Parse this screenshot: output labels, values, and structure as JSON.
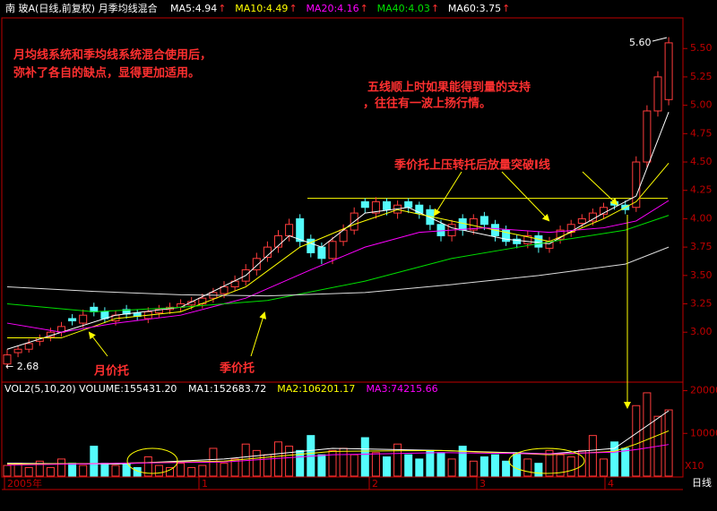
{
  "header": {
    "title": "南  玻A(日线,前复权) 月季均线混合",
    "arrow": "↑",
    "ma_labels": [
      {
        "name": "MA5:4.94",
        "color": "#ffffff"
      },
      {
        "name": "MA10:4.49",
        "color": "#ffff00"
      },
      {
        "name": "MA20:4.16",
        "color": "#ff00ff"
      },
      {
        "name": "MA40:4.03",
        "color": "#00e000"
      },
      {
        "name": "MA60:3.75",
        "color": "#ffffff"
      }
    ]
  },
  "annotations": {
    "note1": [
      "月均线系统和季均线系统混合使用后，",
      "弥补了各自的缺点，显得更加适用。"
    ],
    "note2": [
      "五线顺上时如果能得到量的支持",
      "，往往有一波上扬行情。"
    ],
    "note3": "季价托上压转托后放量突破I线",
    "month_support": "月价托",
    "quarter_support": "季价托",
    "high_label": "5.60",
    "low_label": "← 2.68"
  },
  "chart_data": [
    {
      "type": "candlestick",
      "up_color": "#ff3c3c",
      "down_color": "#54fcfc",
      "ylim": [
        2.56,
        5.77
      ],
      "yticks": [
        {
          "value": 3,
          "label": "3.00"
        },
        {
          "value": 3.25,
          "label": "3.25"
        },
        {
          "value": 3.5,
          "label": "3.50"
        },
        {
          "value": 3.75,
          "label": "3.75"
        },
        {
          "value": 4,
          "label": "4.00"
        },
        {
          "value": 4.25,
          "label": "4.25"
        },
        {
          "value": 4.5,
          "label": "4.50"
        },
        {
          "value": 4.75,
          "label": "4.75"
        },
        {
          "value": 5,
          "label": "5.00"
        },
        {
          "value": 5.25,
          "label": "5.25"
        },
        {
          "value": 5.5,
          "label": "5.50"
        }
      ],
      "open": [
        2.72,
        2.82,
        2.85,
        2.92,
        2.96,
        3.0,
        3.12,
        3.08,
        3.22,
        3.18,
        3.1,
        3.2,
        3.17,
        3.12,
        3.17,
        3.2,
        3.22,
        3.24,
        3.25,
        3.3,
        3.34,
        3.4,
        3.45,
        3.55,
        3.66,
        3.75,
        3.85,
        4.0,
        3.82,
        3.75,
        3.65,
        3.8,
        3.9,
        4.15,
        4.05,
        4.15,
        4.05,
        4.15,
        4.12,
        4.08,
        3.95,
        3.85,
        4.0,
        3.9,
        4.02,
        3.95,
        3.9,
        3.82,
        3.78,
        3.85,
        3.74,
        3.82,
        3.88,
        3.96,
        3.98,
        4.04,
        4.15,
        4.12,
        4.1,
        4.5,
        4.95,
        5.05
      ],
      "high": [
        2.85,
        2.88,
        2.94,
        2.98,
        3.04,
        3.09,
        3.16,
        3.2,
        3.26,
        3.22,
        3.19,
        3.24,
        3.2,
        3.22,
        3.24,
        3.26,
        3.29,
        3.31,
        3.34,
        3.39,
        3.45,
        3.5,
        3.6,
        3.7,
        3.8,
        3.9,
        4.0,
        4.04,
        3.86,
        3.79,
        3.84,
        3.95,
        4.1,
        4.18,
        4.19,
        4.18,
        4.16,
        4.18,
        4.15,
        4.12,
        3.99,
        3.99,
        4.04,
        4.04,
        4.06,
        3.99,
        3.94,
        3.86,
        3.89,
        3.89,
        3.84,
        3.94,
        3.99,
        4.04,
        4.09,
        4.14,
        4.18,
        4.16,
        4.55,
        5.0,
        5.3,
        5.6
      ],
      "low": [
        2.68,
        2.78,
        2.82,
        2.88,
        2.92,
        2.96,
        3.06,
        3.04,
        3.14,
        3.08,
        3.06,
        3.12,
        3.1,
        3.08,
        3.13,
        3.16,
        3.18,
        3.2,
        3.21,
        3.26,
        3.3,
        3.36,
        3.41,
        3.5,
        3.62,
        3.7,
        3.8,
        3.75,
        3.66,
        3.6,
        3.6,
        3.76,
        3.86,
        4.05,
        4.0,
        4.03,
        4.0,
        4.05,
        4.0,
        3.9,
        3.8,
        3.8,
        3.85,
        3.86,
        3.9,
        3.8,
        3.76,
        3.74,
        3.74,
        3.7,
        3.7,
        3.78,
        3.84,
        3.92,
        3.94,
        4.0,
        4.08,
        4.04,
        4.06,
        4.45,
        4.9,
        5.0
      ],
      "close": [
        2.8,
        2.85,
        2.9,
        2.95,
        3.0,
        3.05,
        3.1,
        3.15,
        3.18,
        3.12,
        3.15,
        3.16,
        3.14,
        3.18,
        3.2,
        3.22,
        3.25,
        3.27,
        3.3,
        3.35,
        3.4,
        3.45,
        3.55,
        3.65,
        3.75,
        3.85,
        3.95,
        3.8,
        3.7,
        3.65,
        3.8,
        3.9,
        4.05,
        4.1,
        4.15,
        4.08,
        4.12,
        4.1,
        4.05,
        3.95,
        3.85,
        3.95,
        3.9,
        4.0,
        3.95,
        3.85,
        3.8,
        3.78,
        3.85,
        3.75,
        3.8,
        3.9,
        3.95,
        4.0,
        4.05,
        4.1,
        4.12,
        4.08,
        4.5,
        4.95,
        5.25,
        5.55
      ],
      "resistance_level": 4.18,
      "resistance_color": "#ffff00",
      "series": [
        {
          "color": "#ffffff",
          "x": [
            0,
            5,
            10,
            16,
            22,
            26,
            29,
            33,
            37,
            41,
            46,
            50,
            55,
            58,
            61
          ],
          "values": [
            2.85,
            3.0,
            3.15,
            3.22,
            3.5,
            3.85,
            3.75,
            4.05,
            4.1,
            3.92,
            3.82,
            3.78,
            4.05,
            4.2,
            4.94
          ]
        },
        {
          "color": "#ffff00",
          "x": [
            0,
            5,
            10,
            16,
            22,
            27,
            32,
            36,
            40,
            45,
            50,
            55,
            58,
            61
          ],
          "values": [
            2.95,
            2.95,
            3.12,
            3.18,
            3.4,
            3.75,
            3.95,
            4.08,
            4.0,
            3.9,
            3.8,
            4.0,
            4.15,
            4.49
          ]
        },
        {
          "color": "#ff00ff",
          "x": [
            0,
            5,
            10,
            16,
            22,
            28,
            33,
            38,
            44,
            50,
            55,
            58,
            61
          ],
          "values": [
            3.08,
            3.0,
            3.08,
            3.15,
            3.3,
            3.55,
            3.75,
            3.88,
            3.92,
            3.88,
            3.92,
            3.98,
            4.16
          ]
        },
        {
          "color": "#00e000",
          "x": [
            0,
            8,
            16,
            24,
            33,
            41,
            49,
            57,
            61
          ],
          "values": [
            3.25,
            3.18,
            3.22,
            3.28,
            3.45,
            3.65,
            3.78,
            3.9,
            4.03
          ]
        },
        {
          "color": "#dddddd",
          "x": [
            0,
            8,
            16,
            24,
            33,
            41,
            49,
            57,
            61
          ],
          "values": [
            3.4,
            3.36,
            3.33,
            3.32,
            3.35,
            3.42,
            3.5,
            3.6,
            3.75
          ]
        }
      ]
    },
    {
      "type": "volume",
      "title": "VOL2(5,10,20) VOLUME:155431.20",
      "unit_label": "X10",
      "ylim": [
        0,
        22000
      ],
      "yticks": [
        10000,
        20000
      ],
      "values": [
        2500,
        3000,
        2000,
        3500,
        2000,
        4000,
        3000,
        2500,
        7000,
        3000,
        2500,
        3000,
        2000,
        4500,
        2500,
        2000,
        3000,
        2000,
        2500,
        6500,
        3000,
        4000,
        7500,
        6000,
        5000,
        8000,
        7000,
        6000,
        9500,
        5000,
        6000,
        6500,
        5000,
        9000,
        5500,
        4500,
        7500,
        5000,
        4000,
        6000,
        5500,
        4000,
        7000,
        3500,
        4500,
        5000,
        3500,
        5500,
        4000,
        3000,
        6000,
        5000,
        4500,
        6000,
        9500,
        4000,
        8000,
        6500,
        16500,
        19500,
        14000,
        15500
      ],
      "series": [
        {
          "name": "MA1:152683.72",
          "color": "#ffffff",
          "x": [
            0,
            10,
            20,
            30,
            40,
            50,
            56,
            58,
            61
          ],
          "values": [
            3000,
            2800,
            4000,
            6500,
            6000,
            5200,
            6500,
            10000,
            15300
          ]
        },
        {
          "name": "MA2:106201.17",
          "color": "#ffff00",
          "x": [
            0,
            10,
            20,
            30,
            40,
            50,
            56,
            58,
            61
          ],
          "values": [
            2800,
            3000,
            3500,
            5800,
            6000,
            5000,
            5800,
            7500,
            10600
          ]
        },
        {
          "name": "MA3:74215.66",
          "color": "#ff00ff",
          "x": [
            0,
            10,
            20,
            30,
            40,
            50,
            56,
            58,
            61
          ],
          "values": [
            2600,
            3000,
            3300,
            5000,
            5500,
            5200,
            5600,
            6200,
            7400
          ]
        }
      ]
    }
  ],
  "time_axis": {
    "labels": [
      "2005年",
      "1",
      "2",
      "3",
      "4"
    ],
    "period": "日线"
  }
}
